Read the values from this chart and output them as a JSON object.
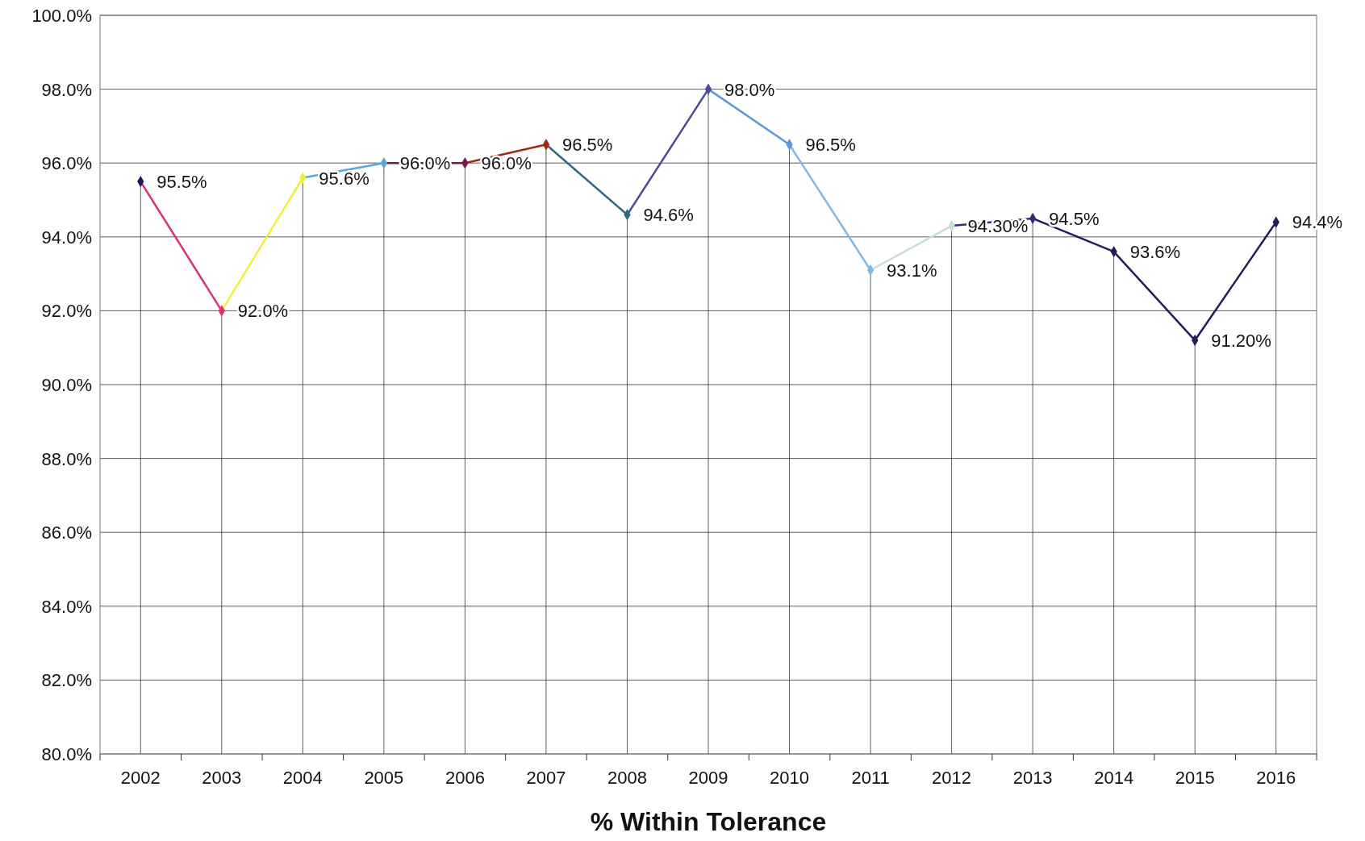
{
  "chart_data": {
    "type": "line",
    "xlabel": "% Within Tolerance",
    "categories": [
      "2002",
      "2003",
      "2004",
      "2005",
      "2006",
      "2007",
      "2008",
      "2009",
      "2010",
      "2011",
      "2012",
      "2013",
      "2014",
      "2015",
      "2016"
    ],
    "series": [
      {
        "values": [
          95.5,
          92.0,
          95.6,
          96.0,
          96.0,
          96.5,
          94.6,
          98.0,
          96.5,
          93.1,
          94.3,
          94.5,
          93.6,
          91.2,
          94.4
        ],
        "colors": [
          "#1f1a5e",
          "#e0306a",
          "#f2f03a",
          "#5aa8d8",
          "#7a1a4a",
          "#a02a10",
          "#2e6a80",
          "#4a4a9a",
          "#5a9ad8",
          "#80b8e8",
          "#c8dcd8",
          "#3a2a7a",
          "#2a1a5a",
          "#2a1a5a",
          "#2a1a5a"
        ],
        "value_labels": [
          "95.5%",
          "92.0%",
          "95.6%",
          "96.0%",
          "96.0%",
          "96.5%",
          "94.6%",
          "98.0%",
          "96.5%",
          "93.1%",
          "94.30%",
          "94.5%",
          "93.6%",
          "91.20%",
          "94.4%"
        ]
      }
    ],
    "ylim": [
      80,
      100
    ],
    "yticks": [
      {
        "value": 80,
        "label": "80.0%"
      },
      {
        "value": 82,
        "label": "82.0%"
      },
      {
        "value": 84,
        "label": "84.0%"
      },
      {
        "value": 86,
        "label": "86.0%"
      },
      {
        "value": 88,
        "label": "88.0%"
      },
      {
        "value": 90,
        "label": "90.0%"
      },
      {
        "value": 92,
        "label": "92.0%"
      },
      {
        "value": 94,
        "label": "94.0%"
      },
      {
        "value": 96,
        "label": "96.0%"
      },
      {
        "value": 98,
        "label": "98.0%"
      },
      {
        "value": 100,
        "label": "100.0%"
      }
    ],
    "grid": true,
    "marker": "diamond",
    "line_style": "solid"
  }
}
